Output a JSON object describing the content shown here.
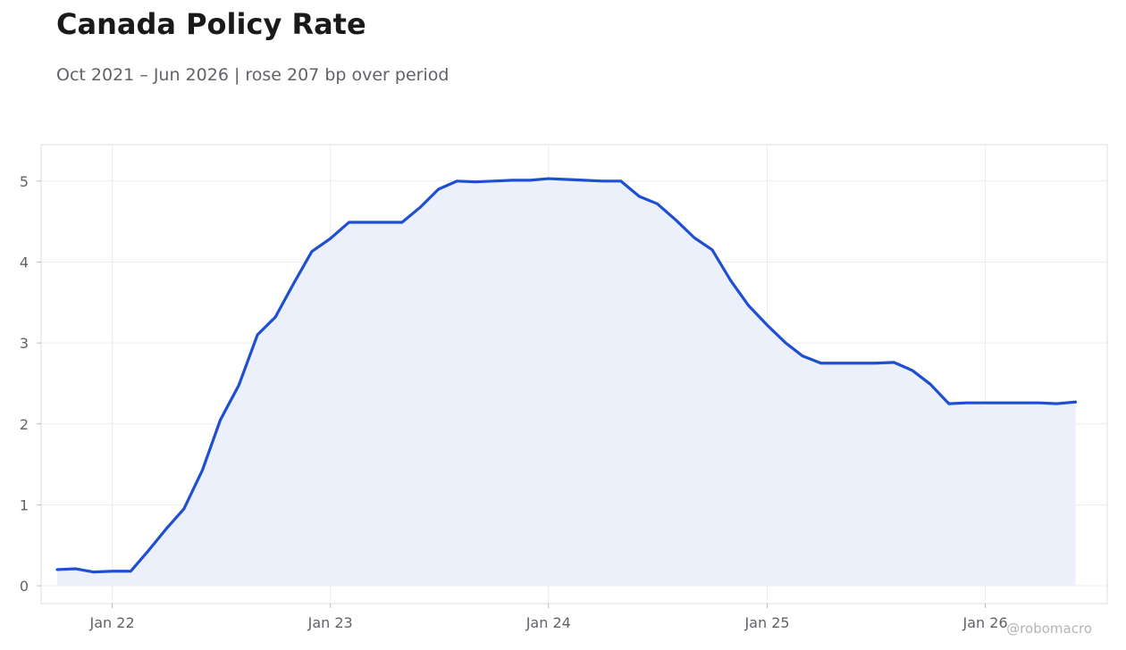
{
  "chart_data": {
    "type": "area",
    "title": "Canada Policy Rate",
    "subtitle": "Oct 2021 – Jun 2026 | rose 207 bp over period",
    "xlabel": "",
    "ylabel": "",
    "x": [
      "2021-10",
      "2021-11",
      "2021-12",
      "2022-01",
      "2022-02",
      "2022-03",
      "2022-04",
      "2022-05",
      "2022-06",
      "2022-07",
      "2022-08",
      "2022-09",
      "2022-10",
      "2022-11",
      "2022-12",
      "2023-01",
      "2023-02",
      "2023-03",
      "2023-04",
      "2023-05",
      "2023-06",
      "2023-07",
      "2023-08",
      "2023-09",
      "2023-10",
      "2023-11",
      "2023-12",
      "2024-01",
      "2024-02",
      "2024-03",
      "2024-04",
      "2024-05",
      "2024-06",
      "2024-07",
      "2024-08",
      "2024-09",
      "2024-10",
      "2024-11",
      "2024-12",
      "2025-01",
      "2025-02",
      "2025-03",
      "2025-04",
      "2025-05",
      "2025-06",
      "2025-07",
      "2025-08",
      "2025-09",
      "2025-10",
      "2025-11",
      "2025-12",
      "2026-01",
      "2026-02",
      "2026-03",
      "2026-04",
      "2026-05",
      "2026-06"
    ],
    "series": [
      {
        "values": [
          0.2,
          0.21,
          0.17,
          0.18,
          0.18,
          0.42,
          0.7,
          0.95,
          1.43,
          2.05,
          2.48,
          3.1,
          3.32,
          3.74,
          4.13,
          4.29,
          4.49,
          4.49,
          4.49,
          4.49,
          4.68,
          4.9,
          5.0,
          4.99,
          5.0,
          5.01,
          5.01,
          5.03,
          5.02,
          5.01,
          5.0,
          5.0,
          4.81,
          4.72,
          4.52,
          4.3,
          4.15,
          3.77,
          3.46,
          3.22,
          3.0,
          2.84,
          2.75,
          2.75,
          2.75,
          2.75,
          2.76,
          2.66,
          2.49,
          2.25,
          2.26,
          2.26,
          2.26,
          2.26,
          2.26,
          2.25,
          2.27
        ]
      }
    ],
    "ylim": [
      -0.22,
      5.45
    ],
    "xlim": [
      "2021-09-04",
      "2026-07-24"
    ],
    "yticks": [
      0,
      1,
      2,
      3,
      4,
      5
    ],
    "xticks": [
      {
        "date": "2022-01-01",
        "label": "Jan 22"
      },
      {
        "date": "2023-01-01",
        "label": "Jan 23"
      },
      {
        "date": "2024-01-01",
        "label": "Jan 24"
      },
      {
        "date": "2025-01-01",
        "label": "Jan 25"
      },
      {
        "date": "2026-01-01",
        "label": "Jan 26"
      }
    ],
    "grid": true,
    "colors": {
      "line": "#1f4fd1",
      "fill": "#ebf0fb",
      "grid": "#ececec",
      "frame": "#dddddd",
      "tick_text": "#5f6368"
    }
  },
  "watermark": "@robomacro"
}
